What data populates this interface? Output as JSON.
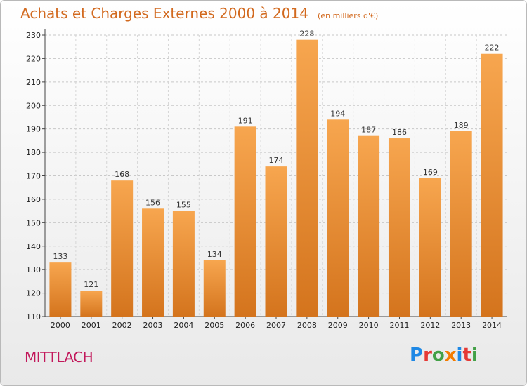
{
  "header": {
    "title": "Achats et Charges Externes 2000 à 2014",
    "unit": "(en milliers d'€)"
  },
  "footer": {
    "commune": "MITTLACH",
    "logo_text": "Proxiti"
  },
  "colors": {
    "bar_light": "#f7a64f",
    "bar_dark": "#d4741d",
    "title": "#d2691e",
    "commune": "#c2185b"
  },
  "chart_data": {
    "type": "bar",
    "categories": [
      "2000",
      "2001",
      "2002",
      "2003",
      "2004",
      "2005",
      "2006",
      "2007",
      "2008",
      "2009",
      "2010",
      "2011",
      "2012",
      "2013",
      "2014"
    ],
    "values": [
      133,
      121,
      168,
      156,
      155,
      134,
      191,
      174,
      228,
      194,
      187,
      186,
      169,
      189,
      222
    ],
    "y_ticks": [
      110,
      120,
      130,
      140,
      150,
      160,
      170,
      180,
      190,
      200,
      210,
      220,
      230
    ],
    "ylim": [
      110,
      230
    ],
    "grid": true
  }
}
